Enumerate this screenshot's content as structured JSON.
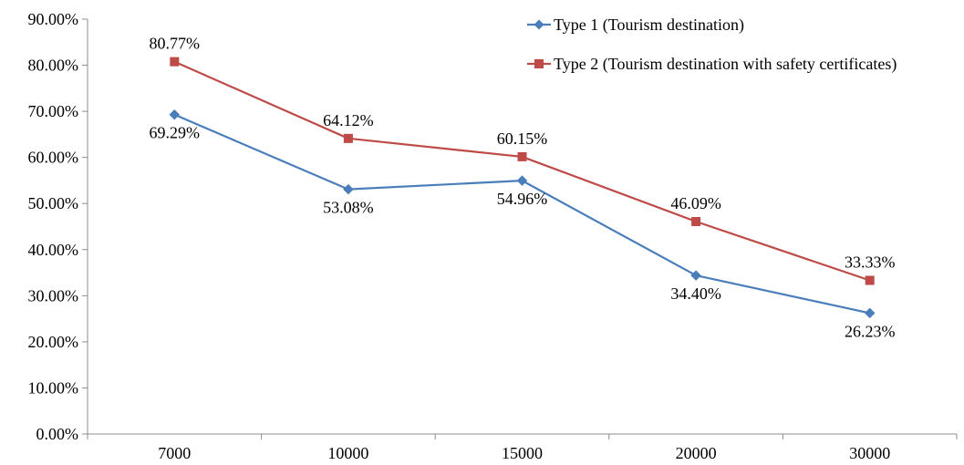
{
  "chart_data": {
    "type": "line",
    "categories": [
      "7000",
      "10000",
      "15000",
      "20000",
      "30000"
    ],
    "ylim": [
      0,
      90
    ],
    "ytick_step": 10,
    "y_tick_labels": [
      "0.00%",
      "10.00%",
      "20.00%",
      "30.00%",
      "40.00%",
      "50.00%",
      "60.00%",
      "70.00%",
      "80.00%",
      "90.00%"
    ],
    "grid": false,
    "legend_position": "top-right",
    "series": [
      {
        "name": "Type 1 (Tourism destination)",
        "color": "#4A7EBB",
        "marker": "diamond",
        "values": [
          69.29,
          53.08,
          54.96,
          34.4,
          26.23
        ],
        "labels": [
          "69.29%",
          "53.08%",
          "54.96%",
          "34.40%",
          "26.23%"
        ],
        "label_position": "below"
      },
      {
        "name": "Type 2 (Tourism destination with safety certificates)",
        "color": "#BE4B48",
        "marker": "square",
        "values": [
          80.77,
          64.12,
          60.15,
          46.09,
          33.33
        ],
        "labels": [
          "80.77%",
          "64.12%",
          "60.15%",
          "46.09%",
          "33.33%"
        ],
        "label_position": "above"
      }
    ]
  }
}
